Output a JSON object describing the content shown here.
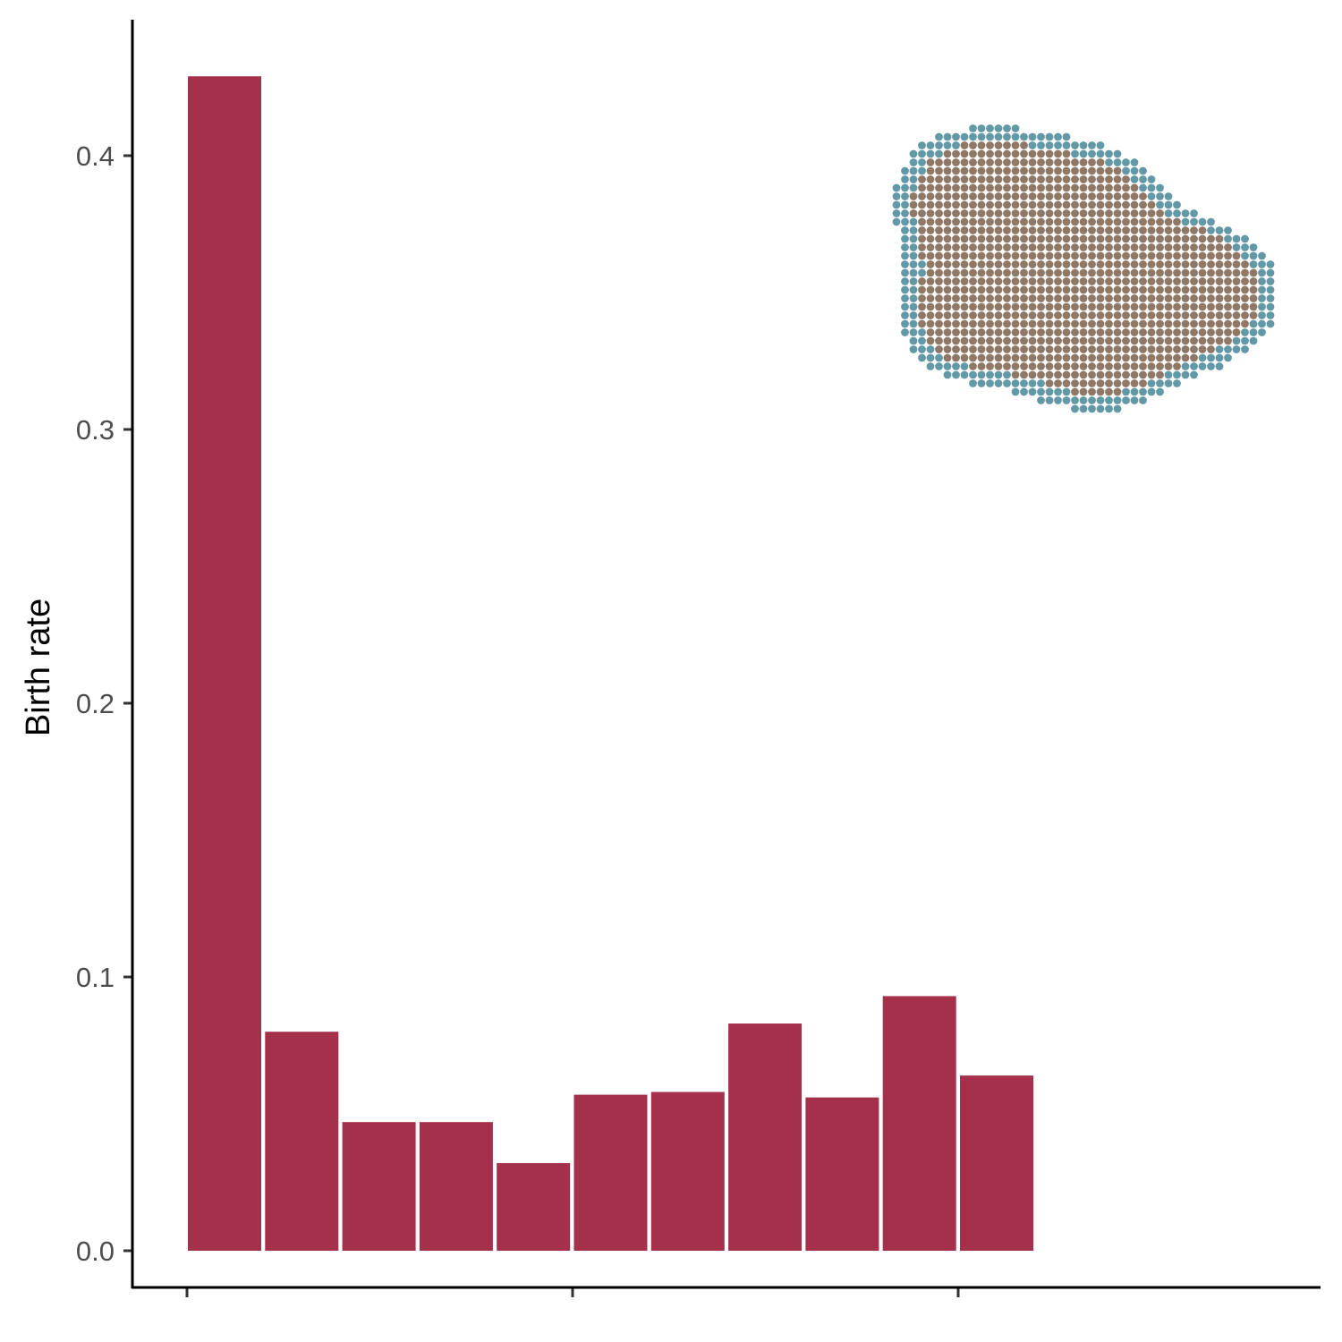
{
  "chart_data": {
    "type": "bar",
    "title": "",
    "xlabel": "",
    "ylabel": "Birth rate",
    "ylim": [
      -0.02,
      0.445
    ],
    "yticks": [
      0.0,
      0.1,
      0.2,
      0.3,
      0.4
    ],
    "ytick_labels": [
      "0.0",
      "0.1",
      "0.2",
      "0.3",
      "0.4"
    ],
    "x_tick_count": 3,
    "grid": false,
    "legend": "none",
    "bar_color": "#A4304B",
    "values": [
      0.429,
      0.08,
      0.047,
      0.047,
      0.032,
      0.057,
      0.058,
      0.083,
      0.056,
      0.093,
      0.064
    ],
    "inset": {
      "type": "scatter",
      "description_colors": {
        "interior": "#8F7866",
        "boundary": "#6399A7"
      }
    }
  }
}
